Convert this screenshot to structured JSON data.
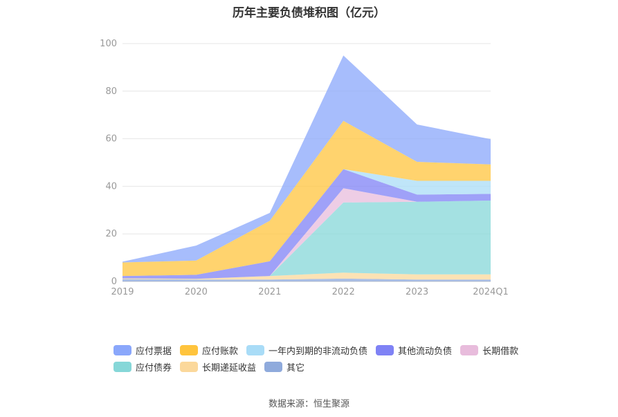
{
  "source": "数据来源：恒生聚源",
  "chart_data": {
    "type": "area",
    "stacked": true,
    "title": "历年主要负债堆积图（亿元）",
    "categories": [
      "2019",
      "2020",
      "2021",
      "2022",
      "2023",
      "2024Q1"
    ],
    "y_ticks": [
      "0",
      "20",
      "40",
      "60",
      "80",
      "100"
    ],
    "ylim": [
      0,
      100
    ],
    "grid": true,
    "legend_position": "bottom",
    "series": [
      {
        "name": "其它",
        "color": "#8faadc",
        "values": [
          1.0,
          0.8,
          0.8,
          1.2,
          0.8,
          0.8
        ]
      },
      {
        "name": "长期递延收益",
        "color": "#fbd89b",
        "values": [
          0.3,
          0.3,
          1.5,
          2.5,
          2.2,
          2.2
        ]
      },
      {
        "name": "应付债券",
        "color": "#86d7d8",
        "values": [
          0,
          0,
          0,
          29.5,
          30.5,
          31.0
        ]
      },
      {
        "name": "长期借款",
        "color": "#e8bcdc",
        "values": [
          0,
          0,
          0,
          6.0,
          0,
          0
        ]
      },
      {
        "name": "其他流动负债",
        "color": "#7f82f5",
        "values": [
          1.0,
          1.7,
          6.2,
          8.0,
          3.0,
          2.8
        ]
      },
      {
        "name": "一年内到期的非流动负债",
        "color": "#a9dcf7",
        "values": [
          0,
          0,
          0,
          0,
          5.8,
          5.5
        ]
      },
      {
        "name": "应付账款",
        "color": "#ffc43d",
        "values": [
          5.7,
          6.0,
          17.0,
          20.3,
          8.0,
          6.9
        ]
      },
      {
        "name": "应付票据",
        "color": "#8aa7fb",
        "values": [
          0.3,
          6.3,
          3.3,
          27.5,
          15.7,
          10.6
        ]
      }
    ]
  }
}
